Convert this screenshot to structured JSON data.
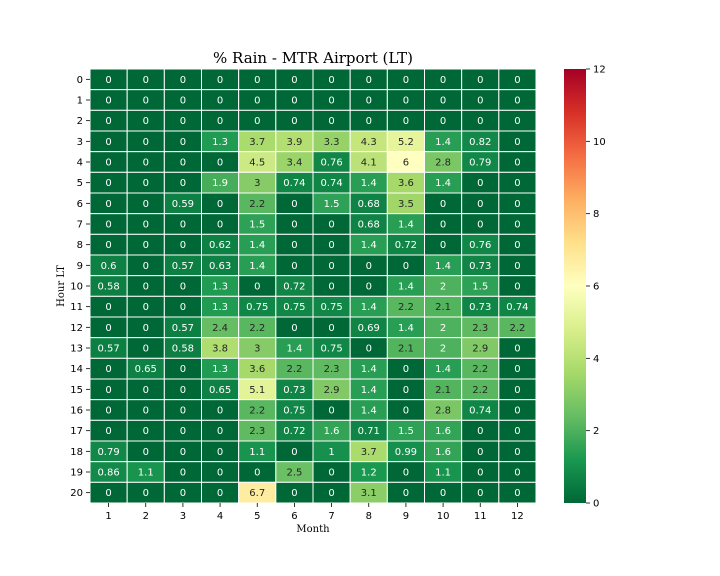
{
  "chart_data": {
    "type": "heatmap",
    "title": "% Rain - MTR Airport (LT)",
    "xlabel": "Month",
    "ylabel": "Hour LT",
    "x": [
      "1",
      "2",
      "3",
      "4",
      "5",
      "6",
      "7",
      "8",
      "9",
      "10",
      "11",
      "12"
    ],
    "y": [
      "0",
      "1",
      "2",
      "3",
      "4",
      "5",
      "6",
      "7",
      "8",
      "9",
      "10",
      "11",
      "12",
      "13",
      "14",
      "15",
      "16",
      "17",
      "18",
      "19",
      "20"
    ],
    "values": [
      [
        0,
        0,
        0,
        0,
        0,
        0,
        0,
        0,
        0,
        0,
        0,
        0
      ],
      [
        0,
        0,
        0,
        0,
        0,
        0,
        0,
        0,
        0,
        0,
        0,
        0
      ],
      [
        0,
        0,
        0,
        0,
        0,
        0,
        0,
        0,
        0,
        0,
        0,
        0
      ],
      [
        0,
        0,
        0,
        1.3,
        3.7,
        3.9,
        3.3,
        4.3,
        5.2,
        1.4,
        0.82,
        0
      ],
      [
        0,
        0,
        0,
        0,
        4.5,
        3.4,
        0.76,
        4.1,
        6,
        2.8,
        0.79,
        0
      ],
      [
        0,
        0,
        0,
        1.9,
        3,
        0.74,
        0.74,
        1.4,
        3.6,
        1.4,
        0,
        0
      ],
      [
        0,
        0,
        0.59,
        0,
        2.2,
        0,
        1.5,
        0.68,
        3.5,
        0,
        0,
        0
      ],
      [
        0,
        0,
        0,
        0,
        1.5,
        0,
        0,
        0.68,
        1.4,
        0,
        0,
        0
      ],
      [
        0,
        0,
        0,
        0.62,
        1.4,
        0,
        0,
        1.4,
        0.72,
        0,
        0.76,
        0
      ],
      [
        0.6,
        0,
        0.57,
        0.63,
        1.4,
        0,
        0,
        0,
        0,
        1.4,
        0.73,
        0
      ],
      [
        0.58,
        0,
        0,
        1.3,
        0,
        0.72,
        0,
        0,
        1.4,
        2,
        1.5,
        0
      ],
      [
        0,
        0,
        0,
        1.3,
        0.75,
        0.75,
        0.75,
        1.4,
        2.2,
        2.1,
        0.73,
        0.74
      ],
      [
        0,
        0,
        0.57,
        2.4,
        2.2,
        0,
        0,
        0.69,
        1.4,
        2,
        2.3,
        2.2
      ],
      [
        0.57,
        0,
        0.58,
        3.8,
        3,
        1.4,
        0.75,
        0,
        2.1,
        2,
        2.9,
        0
      ],
      [
        0,
        0.65,
        0,
        1.3,
        3.6,
        2.2,
        2.3,
        1.4,
        0,
        1.4,
        2.2,
        0
      ],
      [
        0,
        0,
        0,
        0.65,
        5.1,
        0.73,
        2.9,
        1.4,
        0,
        2.1,
        2.2,
        0
      ],
      [
        0,
        0,
        0,
        0,
        2.2,
        0.75,
        0,
        1.4,
        0,
        2.8,
        0.74,
        0
      ],
      [
        0,
        0,
        0,
        0,
        2.3,
        0.72,
        1.6,
        0.71,
        1.5,
        1.6,
        0,
        0
      ],
      [
        0.79,
        0,
        0,
        0,
        1.1,
        0,
        1,
        3.7,
        0.99,
        1.6,
        0,
        0
      ],
      [
        0.86,
        1.1,
        0,
        0,
        0,
        2.5,
        0,
        1.2,
        0,
        1.1,
        0,
        0
      ],
      [
        0,
        0,
        0,
        0,
        6.7,
        0,
        0,
        3.1,
        0,
        0,
        0,
        0
      ]
    ],
    "colorbar": {
      "colormap": "RdYlGn_r",
      "vmin": 0,
      "vmax": 12,
      "ticks": [
        "0",
        "2",
        "4",
        "6",
        "8",
        "10",
        "12"
      ]
    },
    "grid": false
  }
}
